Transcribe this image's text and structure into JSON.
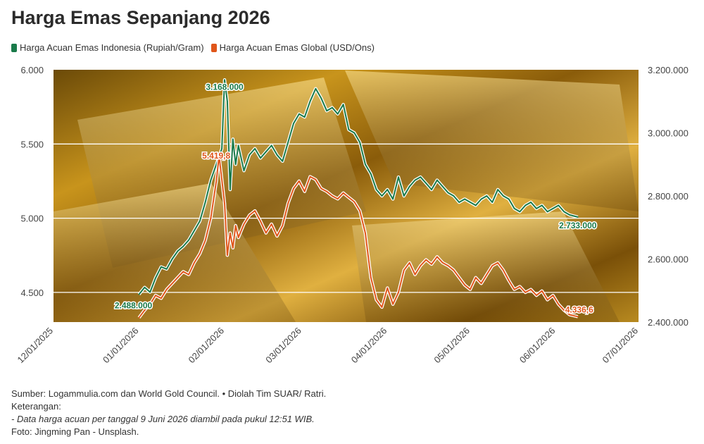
{
  "chart_data": {
    "type": "line",
    "title": "Harga Emas Sepanjang 2026",
    "xlabel": "",
    "ylabel_left": "",
    "ylabel_right": "",
    "x_ticks": [
      "12/01/2025",
      "01/01/2026",
      "02/01/2026",
      "03/01/2026",
      "04/01/2026",
      "05/01/2026",
      "06/01/2026",
      "07/01/2026"
    ],
    "x_range": [
      "2025-12-01",
      "2026-07-01"
    ],
    "y_left_ticks": [
      "4.500",
      "5.000",
      "5.500",
      "6.000"
    ],
    "y_left_range": [
      4300,
      6000
    ],
    "y_right_ticks": [
      "2.400.000",
      "2.600.000",
      "2.800.000",
      "3.000.000",
      "3.200.000"
    ],
    "y_right_range": [
      2400000,
      3200000
    ],
    "grid": true,
    "legend_position": "top-left",
    "series": [
      {
        "name": "Harga Acuan Emas Indonesia (Rupiah/Gram)",
        "axis": "right",
        "color": "#1a7a4a",
        "points": [
          [
            "2026-01-01",
            2488000
          ],
          [
            "2026-01-03",
            2510000
          ],
          [
            "2026-01-05",
            2495000
          ],
          [
            "2026-01-07",
            2540000
          ],
          [
            "2026-01-09",
            2575000
          ],
          [
            "2026-01-11",
            2568000
          ],
          [
            "2026-01-13",
            2600000
          ],
          [
            "2026-01-15",
            2625000
          ],
          [
            "2026-01-17",
            2640000
          ],
          [
            "2026-01-19",
            2660000
          ],
          [
            "2026-01-21",
            2690000
          ],
          [
            "2026-01-23",
            2720000
          ],
          [
            "2026-01-25",
            2780000
          ],
          [
            "2026-01-27",
            2850000
          ],
          [
            "2026-01-29",
            2900000
          ],
          [
            "2026-01-31",
            2950000
          ],
          [
            "2026-02-01",
            3168000
          ],
          [
            "2026-02-02",
            3100000
          ],
          [
            "2026-02-03",
            2820000
          ],
          [
            "2026-02-04",
            2980000
          ],
          [
            "2026-02-05",
            2900000
          ],
          [
            "2026-02-06",
            2960000
          ],
          [
            "2026-02-08",
            2880000
          ],
          [
            "2026-02-10",
            2930000
          ],
          [
            "2026-02-12",
            2950000
          ],
          [
            "2026-02-14",
            2920000
          ],
          [
            "2026-02-16",
            2940000
          ],
          [
            "2026-02-18",
            2960000
          ],
          [
            "2026-02-20",
            2930000
          ],
          [
            "2026-02-22",
            2910000
          ],
          [
            "2026-02-24",
            2970000
          ],
          [
            "2026-02-26",
            3030000
          ],
          [
            "2026-02-28",
            3060000
          ],
          [
            "2026-03-02",
            3050000
          ],
          [
            "2026-03-04",
            3100000
          ],
          [
            "2026-03-06",
            3140000
          ],
          [
            "2026-03-08",
            3110000
          ],
          [
            "2026-03-10",
            3070000
          ],
          [
            "2026-03-12",
            3080000
          ],
          [
            "2026-03-14",
            3060000
          ],
          [
            "2026-03-16",
            3090000
          ],
          [
            "2026-03-18",
            3010000
          ],
          [
            "2026-03-20",
            3000000
          ],
          [
            "2026-03-22",
            2970000
          ],
          [
            "2026-03-24",
            2900000
          ],
          [
            "2026-03-26",
            2870000
          ],
          [
            "2026-03-28",
            2820000
          ],
          [
            "2026-03-30",
            2800000
          ],
          [
            "2026-04-01",
            2820000
          ],
          [
            "2026-04-03",
            2790000
          ],
          [
            "2026-04-05",
            2860000
          ],
          [
            "2026-04-07",
            2800000
          ],
          [
            "2026-04-09",
            2830000
          ],
          [
            "2026-04-11",
            2850000
          ],
          [
            "2026-04-13",
            2860000
          ],
          [
            "2026-04-15",
            2840000
          ],
          [
            "2026-04-17",
            2820000
          ],
          [
            "2026-04-19",
            2850000
          ],
          [
            "2026-04-21",
            2830000
          ],
          [
            "2026-04-23",
            2810000
          ],
          [
            "2026-04-25",
            2800000
          ],
          [
            "2026-04-27",
            2780000
          ],
          [
            "2026-04-29",
            2790000
          ],
          [
            "2026-05-01",
            2780000
          ],
          [
            "2026-05-03",
            2770000
          ],
          [
            "2026-05-05",
            2790000
          ],
          [
            "2026-05-07",
            2800000
          ],
          [
            "2026-05-09",
            2780000
          ],
          [
            "2026-05-11",
            2820000
          ],
          [
            "2026-05-13",
            2800000
          ],
          [
            "2026-05-15",
            2790000
          ],
          [
            "2026-05-17",
            2760000
          ],
          [
            "2026-05-19",
            2750000
          ],
          [
            "2026-05-21",
            2770000
          ],
          [
            "2026-05-23",
            2780000
          ],
          [
            "2026-05-25",
            2760000
          ],
          [
            "2026-05-27",
            2770000
          ],
          [
            "2026-05-29",
            2750000
          ],
          [
            "2026-05-31",
            2760000
          ],
          [
            "2026-06-02",
            2770000
          ],
          [
            "2026-06-04",
            2750000
          ],
          [
            "2026-06-06",
            2740000
          ],
          [
            "2026-06-09",
            2733000
          ]
        ],
        "labels": [
          {
            "x": "2026-01-01",
            "text": "2.488.000"
          },
          {
            "x": "2026-02-01",
            "text": "3.168.000"
          },
          {
            "x": "2026-06-09",
            "text": "2.733.000"
          }
        ]
      },
      {
        "name": "Harga Acuan Emas Global (USD/Ons)",
        "axis": "left",
        "color": "#e0561a",
        "points": [
          [
            "2026-01-01",
            4330
          ],
          [
            "2026-01-03",
            4380
          ],
          [
            "2026-01-05",
            4420
          ],
          [
            "2026-01-07",
            4480
          ],
          [
            "2026-01-09",
            4460
          ],
          [
            "2026-01-11",
            4520
          ],
          [
            "2026-01-13",
            4560
          ],
          [
            "2026-01-15",
            4600
          ],
          [
            "2026-01-17",
            4640
          ],
          [
            "2026-01-19",
            4620
          ],
          [
            "2026-01-21",
            4700
          ],
          [
            "2026-01-23",
            4760
          ],
          [
            "2026-01-25",
            4850
          ],
          [
            "2026-01-27",
            5000
          ],
          [
            "2026-01-29",
            5250
          ],
          [
            "2026-01-30",
            5419.8
          ],
          [
            "2026-02-01",
            5100
          ],
          [
            "2026-02-02",
            4750
          ],
          [
            "2026-02-03",
            4900
          ],
          [
            "2026-02-04",
            4800
          ],
          [
            "2026-02-05",
            4950
          ],
          [
            "2026-02-06",
            4870
          ],
          [
            "2026-02-08",
            4960
          ],
          [
            "2026-02-10",
            5020
          ],
          [
            "2026-02-12",
            5050
          ],
          [
            "2026-02-14",
            4980
          ],
          [
            "2026-02-16",
            4900
          ],
          [
            "2026-02-18",
            4960
          ],
          [
            "2026-02-20",
            4880
          ],
          [
            "2026-02-22",
            4950
          ],
          [
            "2026-02-24",
            5100
          ],
          [
            "2026-02-26",
            5200
          ],
          [
            "2026-02-28",
            5250
          ],
          [
            "2026-03-02",
            5180
          ],
          [
            "2026-03-04",
            5280
          ],
          [
            "2026-03-06",
            5260
          ],
          [
            "2026-03-08",
            5200
          ],
          [
            "2026-03-10",
            5180
          ],
          [
            "2026-03-12",
            5150
          ],
          [
            "2026-03-14",
            5130
          ],
          [
            "2026-03-16",
            5170
          ],
          [
            "2026-03-18",
            5140
          ],
          [
            "2026-03-20",
            5110
          ],
          [
            "2026-03-22",
            5050
          ],
          [
            "2026-03-24",
            4900
          ],
          [
            "2026-03-26",
            4600
          ],
          [
            "2026-03-28",
            4450
          ],
          [
            "2026-03-30",
            4400
          ],
          [
            "2026-04-01",
            4530
          ],
          [
            "2026-04-03",
            4420
          ],
          [
            "2026-04-05",
            4500
          ],
          [
            "2026-04-07",
            4650
          ],
          [
            "2026-04-09",
            4700
          ],
          [
            "2026-04-11",
            4620
          ],
          [
            "2026-04-13",
            4680
          ],
          [
            "2026-04-15",
            4720
          ],
          [
            "2026-04-17",
            4690
          ],
          [
            "2026-04-19",
            4740
          ],
          [
            "2026-04-21",
            4700
          ],
          [
            "2026-04-23",
            4680
          ],
          [
            "2026-04-25",
            4650
          ],
          [
            "2026-04-27",
            4600
          ],
          [
            "2026-04-29",
            4550
          ],
          [
            "2026-05-01",
            4520
          ],
          [
            "2026-05-03",
            4600
          ],
          [
            "2026-05-05",
            4560
          ],
          [
            "2026-05-07",
            4620
          ],
          [
            "2026-05-09",
            4680
          ],
          [
            "2026-05-11",
            4700
          ],
          [
            "2026-05-13",
            4650
          ],
          [
            "2026-05-15",
            4580
          ],
          [
            "2026-05-17",
            4520
          ],
          [
            "2026-05-19",
            4540
          ],
          [
            "2026-05-21",
            4500
          ],
          [
            "2026-05-23",
            4520
          ],
          [
            "2026-05-25",
            4480
          ],
          [
            "2026-05-27",
            4510
          ],
          [
            "2026-05-29",
            4450
          ],
          [
            "2026-05-31",
            4480
          ],
          [
            "2026-06-02",
            4420
          ],
          [
            "2026-06-04",
            4380
          ],
          [
            "2026-06-06",
            4350
          ],
          [
            "2026-06-09",
            4336.6
          ]
        ],
        "labels": [
          {
            "x": "2026-01-30",
            "text": "5.419,8"
          },
          {
            "x": "2026-06-09",
            "text": "4.336,6"
          }
        ]
      }
    ]
  },
  "footer": {
    "source": "Sumber: Logammulia.com dan World Gold Council. • Diolah Tim SUAR/ Ratri.",
    "keterangan": "Keterangan:",
    "note": "- Data harga acuan per tanggal 9 Juni 2026 diambil pada pukul 12:51 WIB.",
    "photo": "Foto: Jingming Pan - Unsplash."
  }
}
